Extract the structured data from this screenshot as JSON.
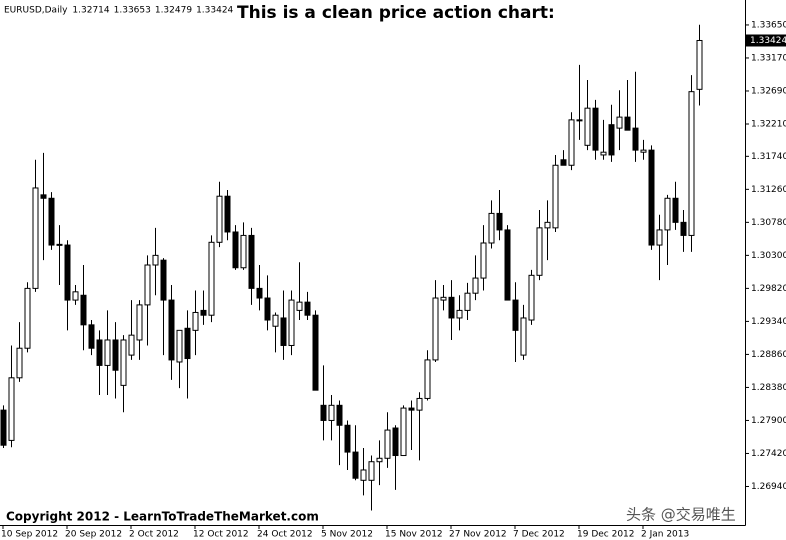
{
  "chart_data": {
    "type": "candlestick",
    "title": "This is a clean price action chart:",
    "symbol": "EURUSD,Daily",
    "copyright": "Copyright 2012 - LearnToTradeTheMarket.com",
    "watermark": "头条 @交易唯生",
    "up_color": "#ffffff",
    "down_color": "#000000",
    "edge_color": "#000000",
    "title_color": "#e8141b",
    "grid": false,
    "categories": [
      "10 Sep 2012",
      null,
      null,
      null,
      null,
      null,
      null,
      null,
      "20 Sep 2012",
      null,
      null,
      null,
      null,
      null,
      null,
      null,
      "2 Oct 2012",
      null,
      null,
      null,
      null,
      null,
      null,
      null,
      "12 Oct 2012",
      null,
      null,
      null,
      null,
      null,
      null,
      null,
      "24 Oct 2012",
      null,
      null,
      null,
      null,
      null,
      null,
      null,
      "5 Nov 2012",
      null,
      null,
      null,
      null,
      null,
      null,
      null,
      "15 Nov 2012",
      null,
      null,
      null,
      null,
      null,
      null,
      null,
      "27 Nov 2012",
      null,
      null,
      null,
      null,
      null,
      null,
      null,
      "7 Dec 2012",
      null,
      null,
      null,
      null,
      null,
      null,
      null,
      "19 Dec 2012",
      null,
      null,
      null,
      null,
      null,
      null,
      null,
      "2 Jan 2013",
      null,
      null,
      null,
      null,
      null,
      null,
      null
    ],
    "open": [
      1.2805,
      1.2761,
      1.2852,
      1.2895,
      1.2982,
      1.3118,
      1.3113,
      1.3045,
      1.3045,
      1.2965,
      1.2972,
      1.2929,
      1.2907,
      1.287,
      1.2907,
      1.2841,
      1.2885,
      1.2907,
      1.2958,
      1.3016,
      1.3023,
      1.2965,
      1.2875,
      1.2924,
      1.2921,
      1.295,
      1.2943,
      1.3049,
      1.3116,
      1.3064,
      1.3012,
      1.3059,
      1.2982,
      1.2968,
      1.2927,
      1.2939,
      1.2899,
      1.295,
      1.2962,
      1.2943,
      1.2812,
      1.279,
      1.2812,
      1.2783,
      1.2744,
      1.2703,
      1.2703,
      1.273,
      1.2735,
      1.2779,
      1.2739,
      1.2808,
      1.2805,
      1.2822,
      1.2878,
      1.2965,
      1.2969,
      1.2939,
      1.295,
      1.2975,
      1.2997,
      1.3048,
      1.3091,
      1.3067,
      1.2965,
      1.2885,
      1.2936,
      1.3001,
      1.307,
      1.307,
      1.3169,
      1.3161,
      1.3227,
      1.319,
      1.3244,
      1.3176,
      1.322,
      1.3215,
      1.3231,
      1.3215,
      1.318,
      1.3183,
      1.3045,
      1.3067,
      1.3113,
      1.3078,
      1.3059,
      1.32714
    ],
    "high": [
      1.2812,
      1.2899,
      1.2933,
      1.2991,
      1.3169,
      1.3179,
      1.3122,
      1.3074,
      1.3052,
      1.2987,
      1.3016,
      1.2936,
      1.2921,
      1.295,
      1.2933,
      1.2914,
      1.2965,
      1.2965,
      1.303,
      1.307,
      1.3026,
      1.2987,
      1.2921,
      1.295,
      1.2979,
      1.2979,
      1.3059,
      1.3137,
      1.3125,
      1.3074,
      1.3078,
      1.307,
      1.3016,
      1.3001,
      1.2947,
      1.2979,
      1.2979,
      1.302,
      1.2977,
      1.295,
      1.287,
      1.2827,
      1.2819,
      1.279,
      1.2783,
      1.275,
      1.2739,
      1.2761,
      1.2802,
      1.2783,
      1.2812,
      1.2819,
      1.2831,
      1.2892,
      1.2994,
      1.2987,
      1.2994,
      1.2972,
      1.299,
      1.303,
      1.3074,
      1.311,
      1.3125,
      1.3074,
      1.2991,
      1.2958,
      1.3009,
      1.3096,
      1.311,
      1.3176,
      1.3183,
      1.3238,
      1.3307,
      1.3285,
      1.3256,
      1.3227,
      1.3249,
      1.327,
      1.3285,
      1.3297,
      1.3198,
      1.319,
      1.3089,
      1.3118,
      1.3137,
      1.3096,
      1.3292,
      1.33653
    ],
    "low": [
      1.275,
      1.2751,
      1.2846,
      1.2889,
      1.2977,
      1.3023,
      1.3038,
      1.2987,
      1.2921,
      1.2958,
      1.2892,
      1.2885,
      1.2827,
      1.2827,
      1.2822,
      1.2802,
      1.2878,
      1.2878,
      1.2899,
      1.2972,
      1.2885,
      1.2849,
      1.2837,
      1.2822,
      1.2885,
      1.2929,
      1.2933,
      1.3042,
      1.3052,
      1.3009,
      1.3009,
      1.2958,
      1.295,
      1.2921,
      1.2889,
      1.2878,
      1.2885,
      1.2936,
      1.2936,
      1.2834,
      1.2761,
      1.2761,
      1.2725,
      1.2718,
      1.2703,
      1.2681,
      1.2659,
      1.2696,
      1.2721,
      1.2689,
      1.2739,
      1.2747,
      1.2732,
      1.2819,
      1.2875,
      1.295,
      1.2907,
      1.2921,
      1.2936,
      1.2965,
      1.2979,
      1.304,
      1.3052,
      1.2965,
      1.2875,
      1.2878,
      1.2929,
      1.2994,
      1.3023,
      1.3064,
      1.3161,
      1.3154,
      1.3198,
      1.3183,
      1.3169,
      1.3169,
      1.3166,
      1.3183,
      1.3212,
      1.3166,
      1.3169,
      1.3038,
      1.2994,
      1.3016,
      1.3067,
      1.3035,
      1.3035,
      1.32479
    ],
    "close": [
      1.2754,
      1.2852,
      1.2895,
      1.2982,
      1.3128,
      1.3113,
      1.3045,
      1.3046,
      1.2965,
      1.2977,
      1.2929,
      1.2895,
      1.287,
      1.2907,
      1.2863,
      1.2907,
      1.2914,
      1.2958,
      1.3016,
      1.303,
      1.2965,
      1.2878,
      1.2921,
      1.288,
      1.2947,
      1.2943,
      1.3049,
      1.3116,
      1.3064,
      1.3012,
      1.3059,
      1.2982,
      1.2968,
      1.2936,
      1.2943,
      1.2899,
      1.2965,
      1.2962,
      1.2943,
      1.2834,
      1.279,
      1.2812,
      1.2783,
      1.2744,
      1.2706,
      1.2718,
      1.273,
      1.2735,
      1.2776,
      1.2739,
      1.2808,
      1.2805,
      1.2822,
      1.2878,
      1.2968,
      1.2969,
      1.2939,
      1.295,
      1.2975,
      1.2997,
      1.3048,
      1.3091,
      1.3067,
      1.2965,
      1.2921,
      1.2939,
      1.3001,
      1.307,
      1.3078,
      1.3161,
      1.3161,
      1.3227,
      1.3227,
      1.3244,
      1.3183,
      1.318,
      1.3176,
      1.3231,
      1.3212,
      1.3183,
      1.3183,
      1.3045,
      1.3067,
      1.3113,
      1.3078,
      1.3059,
      1.3268,
      1.33424
    ],
    "ylim": [
      1.2638,
      1.3394
    ],
    "yticks": [
      {
        "value": 1.3365,
        "label": "1.33650"
      },
      {
        "value": 1.3317,
        "label": "1.33170"
      },
      {
        "value": 1.3269,
        "label": "1.32690"
      },
      {
        "value": 1.3221,
        "label": "1.32210"
      },
      {
        "value": 1.3174,
        "label": "1.31740"
      },
      {
        "value": 1.3126,
        "label": "1.31260"
      },
      {
        "value": 1.3078,
        "label": "1.30780"
      },
      {
        "value": 1.303,
        "label": "1.30300"
      },
      {
        "value": 1.2982,
        "label": "1.29820"
      },
      {
        "value": 1.2934,
        "label": "1.29340"
      },
      {
        "value": 1.2886,
        "label": "1.28860"
      },
      {
        "value": 1.2838,
        "label": "1.28380"
      },
      {
        "value": 1.279,
        "label": "1.27900"
      },
      {
        "value": 1.2742,
        "label": "1.27420"
      },
      {
        "value": 1.2694,
        "label": "1.26940"
      }
    ]
  }
}
